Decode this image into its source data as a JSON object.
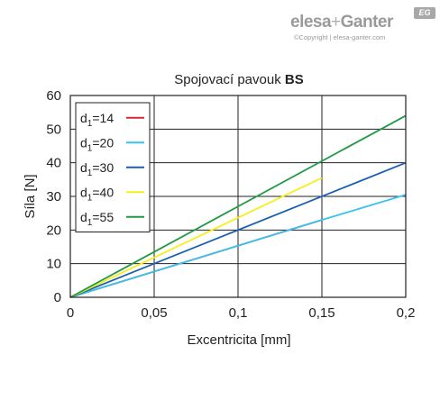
{
  "logo": {
    "brand_part1": "elesa",
    "brand_plus": "+",
    "brand_part2": "Ganter",
    "badge": "EG",
    "copyright": "©Copyright | elesa-ganter.com"
  },
  "chart_data": {
    "type": "line",
    "title": "Spojovací pavouk",
    "title_bold": "BS",
    "xlabel": "Excentricita [mm]",
    "ylabel": "Síla [N]",
    "xlim": [
      0,
      0.2
    ],
    "ylim": [
      0,
      60
    ],
    "x_ticks": [
      0,
      0.05,
      0.1,
      0.15,
      0.2
    ],
    "x_tick_labels": [
      "0",
      "0,05",
      "0,1",
      "0,15",
      "0,2"
    ],
    "y_ticks": [
      0,
      10,
      20,
      30,
      40,
      50,
      60
    ],
    "y_tick_labels": [
      "0",
      "10",
      "20",
      "30",
      "40",
      "50",
      "60"
    ],
    "grid": true,
    "legend_position": "top-left",
    "series": [
      {
        "name": "d1=14",
        "label_main": "d",
        "label_sub": "1",
        "label_rest": "=14",
        "color": "#d6263a",
        "x": [
          0,
          0.15
        ],
        "y": [
          0,
          23
        ]
      },
      {
        "name": "d1=20",
        "label_main": "d",
        "label_sub": "1",
        "label_rest": "=20",
        "color": "#36c3ef",
        "x": [
          0,
          0.15,
          0.2
        ],
        "y": [
          0,
          23,
          30.5
        ]
      },
      {
        "name": "d1=30",
        "label_main": "d",
        "label_sub": "1",
        "label_rest": "=30",
        "color": "#1a5fb0",
        "x": [
          0,
          0.2
        ],
        "y": [
          0,
          40
        ]
      },
      {
        "name": "d1=40",
        "label_main": "d",
        "label_sub": "1",
        "label_rest": "=40",
        "color": "#f5ef1e",
        "x": [
          0,
          0.15
        ],
        "y": [
          0,
          35.5
        ]
      },
      {
        "name": "d1=55",
        "label_main": "d",
        "label_sub": "1",
        "label_rest": "=55",
        "color": "#229944",
        "x": [
          0,
          0.2
        ],
        "y": [
          0,
          54
        ]
      }
    ]
  }
}
